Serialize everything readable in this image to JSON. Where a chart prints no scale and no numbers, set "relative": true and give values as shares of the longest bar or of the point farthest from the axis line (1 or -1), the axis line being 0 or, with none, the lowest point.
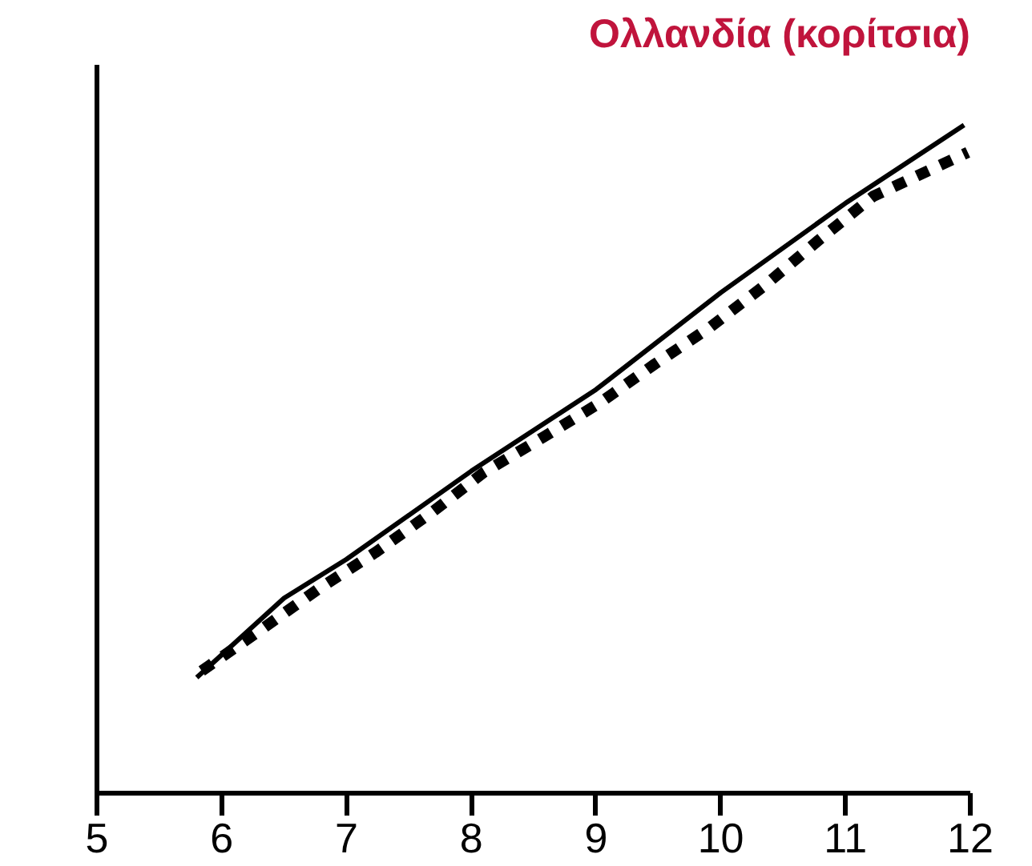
{
  "chart_data": {
    "type": "line",
    "title": "Ολλανδία (κορίτσια)",
    "relative": true,
    "xlim": [
      5,
      12
    ],
    "xticks": [
      5,
      6,
      7,
      8,
      9,
      10,
      11,
      12
    ],
    "tick_labels": "x",
    "grid": false,
    "marker": "none",
    "series": [
      {
        "color": "#000000",
        "line_style": "solid",
        "x": [
          5.8,
          6.5,
          7,
          8,
          9,
          10,
          11,
          11.95
        ],
        "values": [
          0.173,
          0.292,
          0.35,
          0.482,
          0.604,
          0.749,
          0.883,
          1
        ]
      },
      {
        "color": "#000000",
        "line_style": "dashed",
        "x": [
          5.84,
          6.31,
          6.77,
          7.23,
          7.69,
          8.1,
          8.58,
          9.03,
          9.47,
          9.92,
          10.36,
          10.8,
          11.22,
          11.98
        ],
        "values": [
          0.183,
          0.244,
          0.305,
          0.36,
          0.421,
          0.48,
          0.533,
          0.584,
          0.642,
          0.698,
          0.761,
          0.83,
          0.893,
          0.959
        ]
      }
    ]
  }
}
